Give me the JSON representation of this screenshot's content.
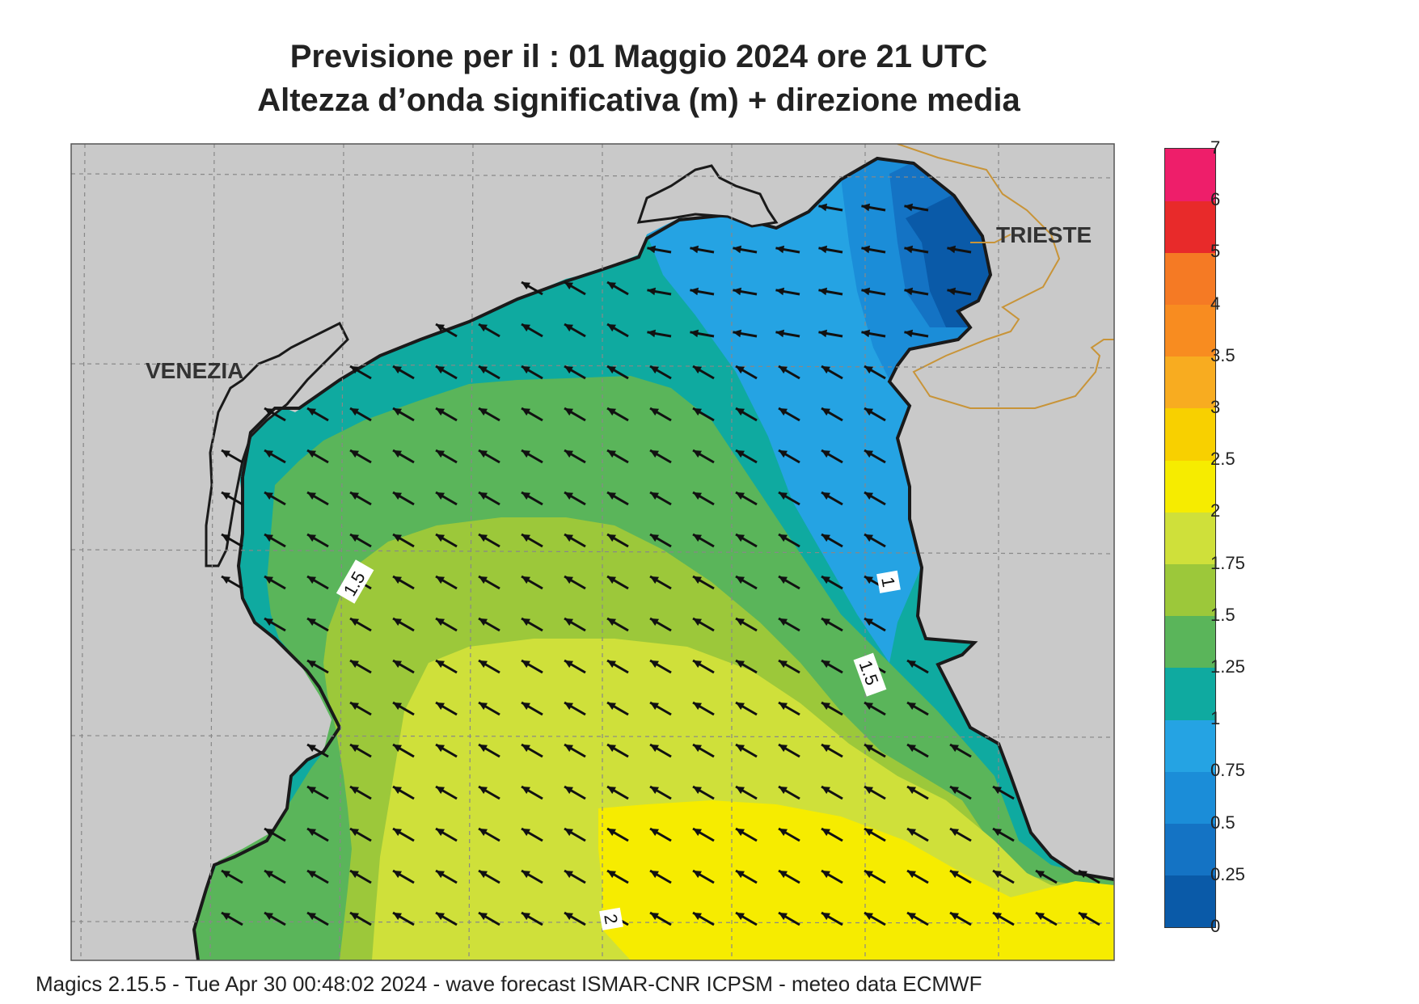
{
  "header": {
    "title_line1": "Previsione per il  :  01   Maggio  2024   ore 21 UTC",
    "title_line2": "Altezza d’onda significativa (m) + direzione media"
  },
  "map": {
    "cities": [
      {
        "name": "VENEZIA"
      },
      {
        "name": "TRIESTE"
      }
    ],
    "contour_labels": [
      "1.5",
      "1",
      "1.5",
      "2"
    ],
    "arrow_direction": "north-west",
    "land_color": "#c9c9c9",
    "coastline_color": "#1a1a1a",
    "border_color": "#c89438"
  },
  "colorbar": {
    "levels": [
      "0",
      "0.25",
      "0.5",
      "0.75",
      "1",
      "1.25",
      "1.5",
      "1.75",
      "2",
      "2.5",
      "3",
      "3.5",
      "4",
      "5",
      "6",
      "7"
    ],
    "colors": [
      "#0a5aa8",
      "#1473c4",
      "#1b8dd8",
      "#25a3e3",
      "#0faaa0",
      "#5ab55a",
      "#9cc83a",
      "#cfe03a",
      "#f6ec00",
      "#f8d000",
      "#f8ac20",
      "#f88c20",
      "#f57a24",
      "#e82a2a",
      "#ee1e6a"
    ]
  },
  "footer": {
    "text": "Magics 2.15.5 - Tue Apr 30 00:48:02 2024 - wave forecast  ISMAR-CNR  ICPSM - meteo data   ECMWF"
  }
}
